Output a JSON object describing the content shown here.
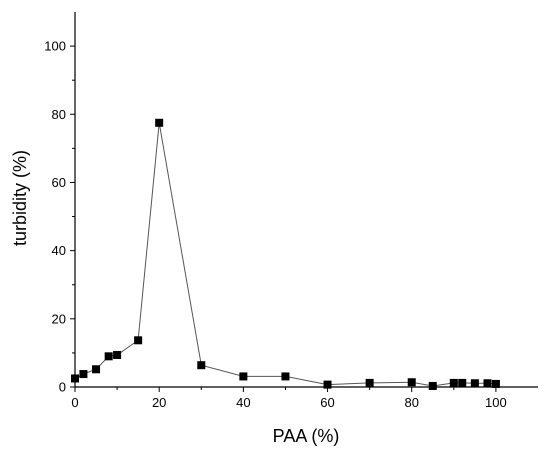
{
  "chart_data": {
    "type": "line",
    "xlabel": "PAA (%)",
    "ylabel": "turbidity (%)",
    "xlim": [
      0,
      110
    ],
    "ylim": [
      0,
      110
    ],
    "xticks": [
      0,
      20,
      40,
      60,
      80,
      100
    ],
    "yticks": [
      0,
      20,
      40,
      60,
      80,
      100
    ],
    "x_tick_labels": [
      "0",
      "20",
      "40",
      "60",
      "80",
      "100"
    ],
    "y_tick_labels": [
      "0",
      "20",
      "40",
      "60",
      "80",
      "100"
    ],
    "grid": false,
    "legend": "none",
    "marker": "square",
    "series_color": "#000000",
    "line_color": "#555555",
    "series": [
      {
        "x": [
          0,
          2,
          5,
          8,
          10,
          15,
          20,
          30,
          40,
          50,
          60,
          70,
          80,
          85,
          90,
          92,
          95,
          98,
          100
        ],
        "y": [
          2.5,
          3.8,
          5.2,
          9.0,
          9.4,
          13.7,
          77.5,
          6.4,
          3.1,
          3.1,
          0.7,
          1.2,
          1.4,
          0.3,
          1.2,
          1.2,
          1.1,
          1.1,
          0.9
        ]
      }
    ]
  }
}
